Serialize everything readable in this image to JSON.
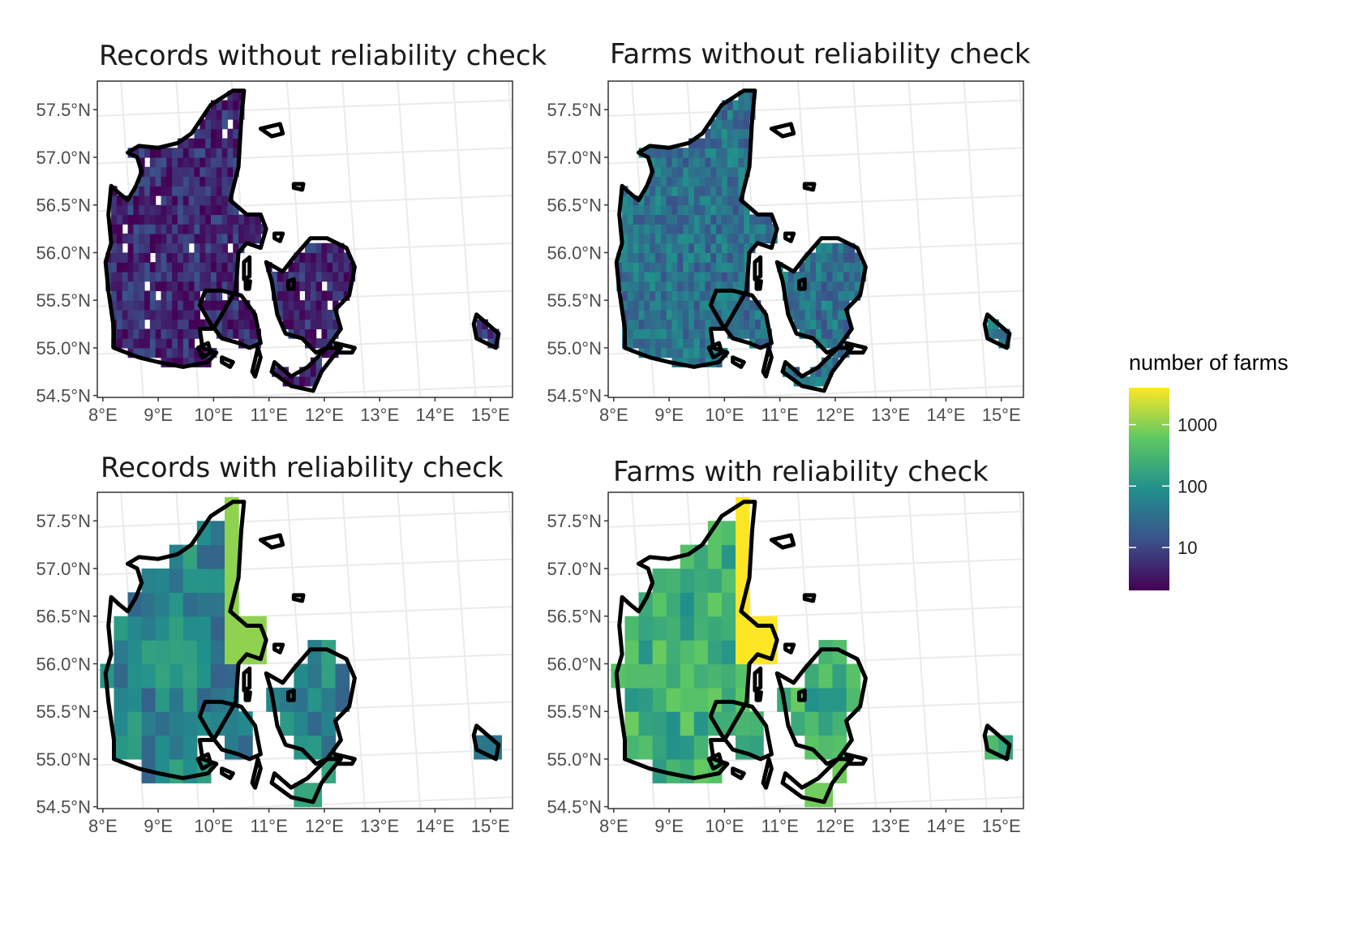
{
  "chart_data": {
    "type": "heatmap",
    "legend": {
      "title": "number of farms",
      "scale": "log10",
      "range": [
        2,
        4000
      ],
      "breaks": [
        10,
        100,
        1000
      ],
      "break_labels": [
        "10",
        "100",
        "1000"
      ],
      "colors": [
        "#440154",
        "#3b528b",
        "#21908c",
        "#5dc863",
        "#fde725"
      ]
    },
    "lat_ticks": [
      {
        "value": 57.5,
        "label": "57.5°N"
      },
      {
        "value": 57.0,
        "label": "57.0°N"
      },
      {
        "value": 56.5,
        "label": "56.5°N"
      },
      {
        "value": 56.0,
        "label": "56.0°N"
      },
      {
        "value": 55.5,
        "label": "55.5°N"
      },
      {
        "value": 55.0,
        "label": "55.0°N"
      },
      {
        "value": 54.5,
        "label": "54.5°N"
      }
    ],
    "lon_ticks": [
      {
        "value": 8,
        "label": "8°E"
      },
      {
        "value": 9,
        "label": "9°E"
      },
      {
        "value": 10,
        "label": "10°E"
      },
      {
        "value": 11,
        "label": "11°E"
      },
      {
        "value": 12,
        "label": "12°E"
      },
      {
        "value": 13,
        "label": "13°E"
      },
      {
        "value": 14,
        "label": "14°E"
      },
      {
        "value": 15,
        "label": "15°E"
      }
    ],
    "xlim": [
      7.9,
      15.4
    ],
    "ylim": [
      54.48,
      57.8
    ],
    "panels": [
      {
        "title": "Records without reliability check",
        "level": "low",
        "typical_count": 5,
        "cell_size_deg": 0.1
      },
      {
        "title": "Farms without reliability check",
        "level": "mid",
        "typical_count": 35,
        "cell_size_deg": 0.1
      },
      {
        "title": "Records with reliability check",
        "level": "mid-high",
        "typical_count": 60,
        "cell_size_deg": 0.25
      },
      {
        "title": "Farms with reliability check",
        "level": "high",
        "typical_count": 250,
        "cell_size_deg": 0.25
      }
    ]
  }
}
